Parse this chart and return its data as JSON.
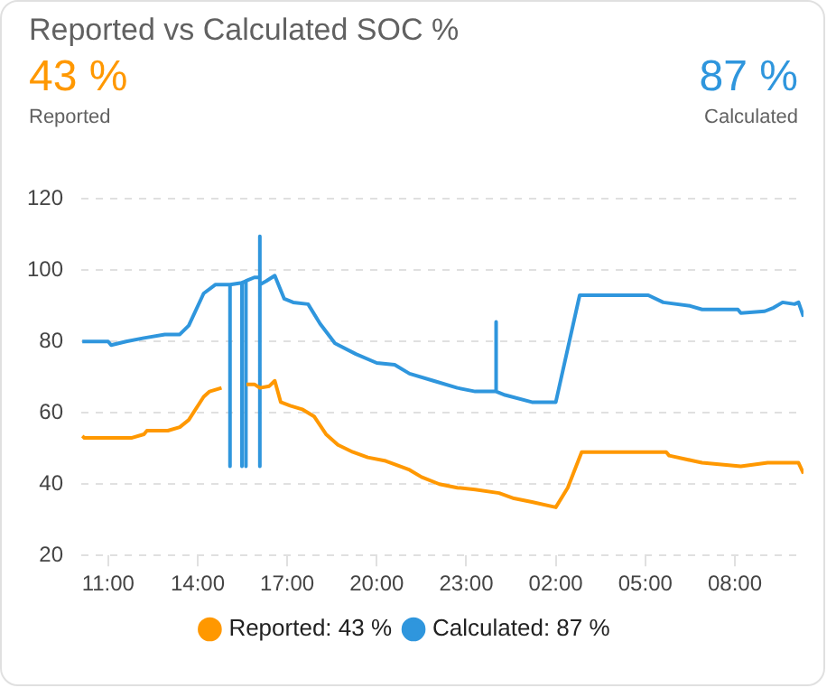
{
  "chart_data": {
    "type": "line",
    "title": "Reported vs Calculated SOC %",
    "annotations": [
      "43 %",
      "Reported",
      "87 %",
      "Calculated"
    ],
    "xlim": [
      "--01-01T10:06",
      "--01-02T10:18"
    ],
    "xticks": [
      {
        "value": "--01-01T11:00",
        "label": "11:00"
      },
      {
        "value": "--01-01T14:00",
        "label": "14:00"
      },
      {
        "value": "--01-01T17:00",
        "label": "17:00"
      },
      {
        "value": "--01-01T20:00",
        "label": "20:00"
      },
      {
        "value": "--01-01T23:00",
        "label": "23:00"
      },
      {
        "value": "--01-02T02:00",
        "label": "02:00"
      },
      {
        "value": "--01-02T05:00",
        "label": "05:00"
      },
      {
        "value": "--01-02T08:00",
        "label": "08:00"
      }
    ],
    "ylim": [
      20,
      120
    ],
    "yticks": [
      20,
      40,
      60,
      80,
      100,
      120
    ],
    "grid": "y",
    "legend": "bottom",
    "marker": "none",
    "line_style": "solid",
    "series": [
      {
        "name": "Reported: 43 %",
        "color": "#ff9800",
        "x": [
          "--01-01T10:08",
          "--01-01T10:12",
          "--01-01T11:48",
          "--01-01T12:12",
          "--01-01T12:18",
          "--01-01T13:00",
          "--01-01T13:24",
          "--01-01T13:42",
          "--01-01T14:12",
          "--01-01T14:24",
          "--01-01T14:48",
          "--01-01T15:00",
          "--01-01T15:38",
          "--01-01T15:54",
          "--01-01T16:05",
          "--01-01T16:24",
          "--01-01T16:35",
          "--01-01T16:47",
          "--01-01T17:06",
          "--01-01T17:30",
          "--01-01T17:54",
          "--01-01T18:18",
          "--01-01T18:42",
          "--01-01T19:12",
          "--01-01T19:42",
          "--01-01T20:18",
          "--01-01T21:06",
          "--01-01T21:30",
          "--01-01T22:06",
          "--01-01T22:42",
          "--01-01T23:18",
          "--01-02T00:06",
          "--01-02T00:36",
          "--01-02T01:12",
          "--01-02T02:00",
          "--01-02T02:24",
          "--01-02T02:52",
          "--01-02T05:42",
          "--01-02T05:48",
          "--01-02T06:54",
          "--01-02T08:12",
          "--01-02T09:06",
          "--01-02T10:08",
          "--01-02T10:18"
        ],
        "values": [
          53.5,
          53,
          53,
          54,
          55,
          55,
          56,
          58,
          64.5,
          66,
          67,
          null,
          68,
          68,
          67,
          67.5,
          69,
          63,
          62,
          61,
          59,
          54,
          51,
          49,
          47.5,
          46.5,
          44,
          42,
          40,
          39,
          38.5,
          37.5,
          36,
          35,
          33.5,
          39,
          49,
          49,
          48,
          46,
          45,
          46,
          46,
          43
        ]
      },
      {
        "name": "Calculated: 87 %",
        "color": "#2f96dd",
        "x": [
          "--01-01T10:08",
          "--01-01T11:00",
          "--01-01T11:06",
          "--01-01T11:36",
          "--01-01T12:12",
          "--01-01T12:54",
          "--01-01T13:24",
          "--01-01T13:42",
          "--01-01T14:12",
          "--01-01T14:36",
          "--01-01T15:05",
          "--01-01T15:05",
          "--01-01T15:05",
          "--01-01T15:29",
          "--01-01T15:29",
          "--01-01T15:29",
          "--01-01T15:37",
          "--01-01T15:37",
          "--01-01T15:37",
          "--01-01T15:54",
          "--01-01T16:05",
          "--01-01T16:05",
          "--01-01T16:05",
          "--01-01T16:05",
          "--01-01T16:18",
          "--01-01T16:35",
          "--01-01T16:54",
          "--01-01T17:12",
          "--01-01T17:42",
          "--01-01T18:06",
          "--01-01T18:36",
          "--01-01T19:18",
          "--01-01T20:00",
          "--01-01T20:36",
          "--01-01T21:06",
          "--01-01T21:54",
          "--01-01T22:42",
          "--01-01T23:18",
          "--01-02T00:00",
          "--01-02T00:00",
          "--01-02T00:00",
          "--01-02T00:18",
          "--01-02T01:12",
          "--01-02T02:00",
          "--01-02T02:48",
          "--01-02T05:06",
          "--01-02T05:36",
          "--01-02T06:30",
          "--01-02T06:54",
          "--01-02T08:06",
          "--01-02T08:12",
          "--01-02T09:00",
          "--01-02T09:18",
          "--01-02T09:36",
          "--01-02T10:00",
          "--01-02T10:08",
          "--01-02T10:18"
        ],
        "values": [
          80,
          80,
          79,
          80,
          81,
          82,
          82,
          84.5,
          93.5,
          96,
          96,
          45,
          96,
          96.5,
          45,
          96.5,
          97,
          45,
          97,
          98,
          98,
          45,
          109.5,
          96,
          97,
          98.5,
          92,
          91,
          90.5,
          85,
          79.5,
          76.5,
          74,
          73.5,
          71,
          69,
          67,
          66,
          66,
          85.5,
          66,
          65,
          63,
          63,
          93,
          93,
          91,
          90,
          89,
          89,
          88,
          88.5,
          89.5,
          91,
          90.5,
          91,
          87
        ]
      }
    ]
  }
}
